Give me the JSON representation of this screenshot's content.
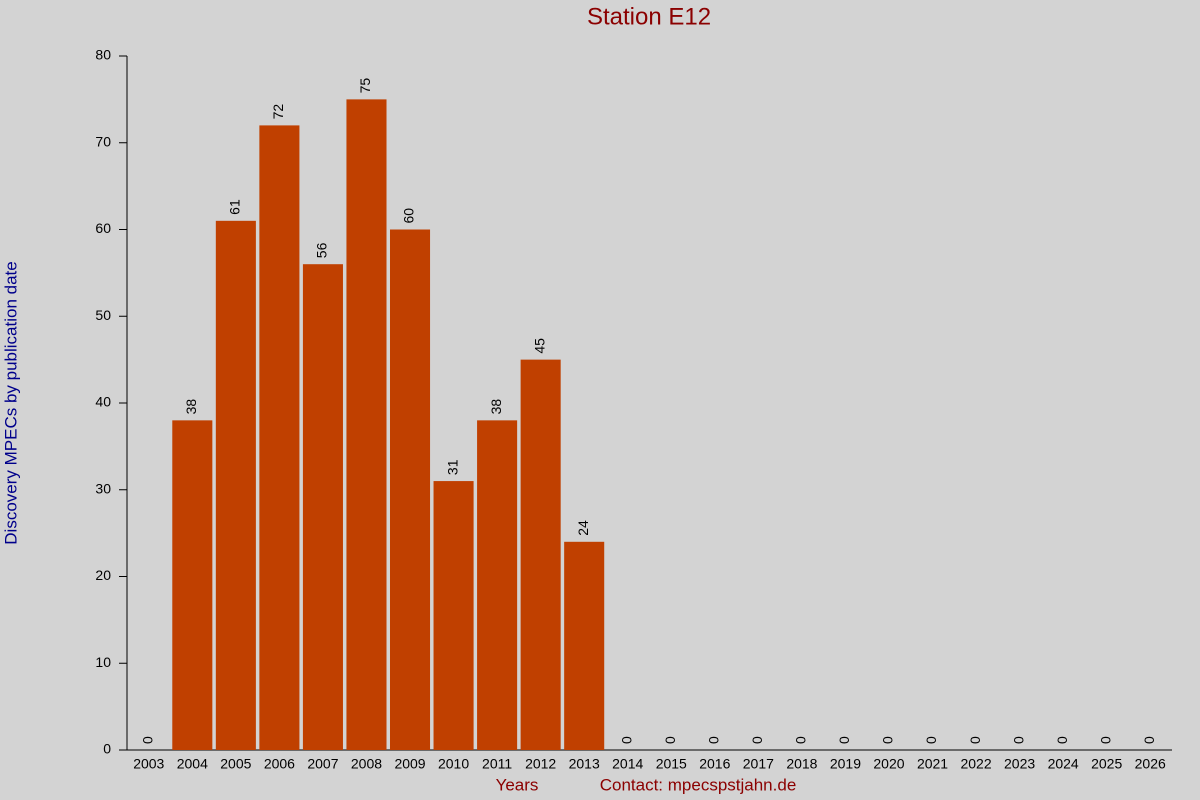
{
  "chart_data": {
    "type": "bar",
    "title": "Station E12",
    "y_label": "Discovery MPECs by publication date",
    "x_label": "Years",
    "annotation": "Contact: mpecspstjahn.de",
    "categories": [
      "2003",
      "2004",
      "2005",
      "2006",
      "2007",
      "2008",
      "2009",
      "2010",
      "2011",
      "2012",
      "2013",
      "2014",
      "2015",
      "2016",
      "2017",
      "2018",
      "2019",
      "2020",
      "2021",
      "2022",
      "2023",
      "2024",
      "2025",
      "2026"
    ],
    "values": [
      0,
      38,
      61,
      72,
      56,
      75,
      60,
      31,
      38,
      45,
      24,
      0,
      0,
      0,
      0,
      0,
      0,
      0,
      0,
      0,
      0,
      0,
      0,
      0
    ],
    "color": "#c04000",
    "ylim": [
      0,
      80
    ],
    "yticks": [
      0,
      10,
      20,
      30,
      40,
      50,
      60,
      70,
      80
    ]
  }
}
